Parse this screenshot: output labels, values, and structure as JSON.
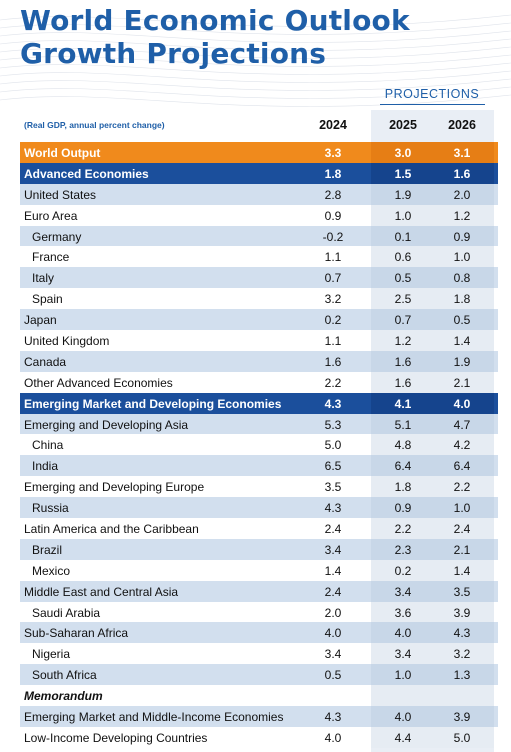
{
  "title_line1": "World Economic Outlook",
  "title_line2": "Growth Projections",
  "projections_label": "PROJECTIONS",
  "units": "(Real GDP, annual percent change)",
  "years": [
    "2024",
    "2025",
    "2026"
  ],
  "colors": {
    "title_blue": "#1f5fa8",
    "orange": "#f08a1c",
    "dark_blue": "#1b4f9c",
    "light_blue": "#d2dfee"
  },
  "rows": [
    {
      "label": "World Output",
      "values": [
        "3.3",
        "3.0",
        "3.1"
      ],
      "style": "orange"
    },
    {
      "label": "Advanced Economies",
      "values": [
        "1.8",
        "1.5",
        "1.6"
      ],
      "style": "dark"
    },
    {
      "label": "United States",
      "values": [
        "2.8",
        "1.9",
        "2.0"
      ],
      "style": "light"
    },
    {
      "label": "Euro Area",
      "values": [
        "0.9",
        "1.0",
        "1.2"
      ],
      "style": "white"
    },
    {
      "label": "Germany",
      "values": [
        "-0.2",
        "0.1",
        "0.9"
      ],
      "style": "light",
      "indent": true
    },
    {
      "label": "France",
      "values": [
        "1.1",
        "0.6",
        "1.0"
      ],
      "style": "white",
      "indent": true
    },
    {
      "label": "Italy",
      "values": [
        "0.7",
        "0.5",
        "0.8"
      ],
      "style": "light",
      "indent": true
    },
    {
      "label": "Spain",
      "values": [
        "3.2",
        "2.5",
        "1.8"
      ],
      "style": "white",
      "indent": true
    },
    {
      "label": "Japan",
      "values": [
        "0.2",
        "0.7",
        "0.5"
      ],
      "style": "light"
    },
    {
      "label": "United Kingdom",
      "values": [
        "1.1",
        "1.2",
        "1.4"
      ],
      "style": "white"
    },
    {
      "label": "Canada",
      "values": [
        "1.6",
        "1.6",
        "1.9"
      ],
      "style": "light"
    },
    {
      "label": "Other Advanced Economies",
      "values": [
        "2.2",
        "1.6",
        "2.1"
      ],
      "style": "white"
    },
    {
      "label": "Emerging Market and Developing Economies",
      "values": [
        "4.3",
        "4.1",
        "4.0"
      ],
      "style": "dark"
    },
    {
      "label": "Emerging and Developing Asia",
      "values": [
        "5.3",
        "5.1",
        "4.7"
      ],
      "style": "light"
    },
    {
      "label": "China",
      "values": [
        "5.0",
        "4.8",
        "4.2"
      ],
      "style": "white",
      "indent": true
    },
    {
      "label": "India",
      "values": [
        "6.5",
        "6.4",
        "6.4"
      ],
      "style": "light",
      "indent": true
    },
    {
      "label": "Emerging and Developing Europe",
      "values": [
        "3.5",
        "1.8",
        "2.2"
      ],
      "style": "white"
    },
    {
      "label": "Russia",
      "values": [
        "4.3",
        "0.9",
        "1.0"
      ],
      "style": "light",
      "indent": true
    },
    {
      "label": "Latin America and the Caribbean",
      "values": [
        "2.4",
        "2.2",
        "2.4"
      ],
      "style": "white"
    },
    {
      "label": "Brazil",
      "values": [
        "3.4",
        "2.3",
        "2.1"
      ],
      "style": "light",
      "indent": true
    },
    {
      "label": "Mexico",
      "values": [
        "1.4",
        "0.2",
        "1.4"
      ],
      "style": "white",
      "indent": true
    },
    {
      "label": "Middle East and Central Asia",
      "values": [
        "2.4",
        "3.4",
        "3.5"
      ],
      "style": "light"
    },
    {
      "label": "Saudi Arabia",
      "values": [
        "2.0",
        "3.6",
        "3.9"
      ],
      "style": "white",
      "indent": true
    },
    {
      "label": "Sub-Saharan Africa",
      "values": [
        "4.0",
        "4.0",
        "4.3"
      ],
      "style": "light"
    },
    {
      "label": "Nigeria",
      "values": [
        "3.4",
        "3.4",
        "3.2"
      ],
      "style": "white",
      "indent": true
    },
    {
      "label": "South Africa",
      "values": [
        "0.5",
        "1.0",
        "1.3"
      ],
      "style": "light",
      "indent": true
    },
    {
      "label": "Memorandum",
      "values": [
        "",
        "",
        ""
      ],
      "style": "memo"
    },
    {
      "label": "Emerging Market and Middle-Income Economies",
      "values": [
        "4.3",
        "4.0",
        "3.9"
      ],
      "style": "light"
    },
    {
      "label": "Low-Income Developing Countries",
      "values": [
        "4.0",
        "4.4",
        "5.0"
      ],
      "style": "white"
    }
  ]
}
